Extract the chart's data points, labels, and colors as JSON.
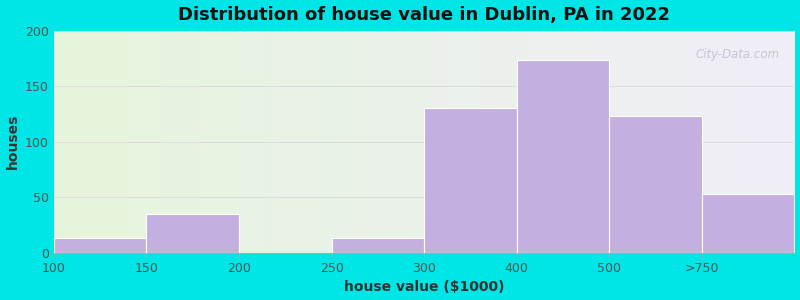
{
  "title": "Distribution of house value in Dublin, PA in 2022",
  "xlabel": "house value ($1000)",
  "ylabel": "houses",
  "tick_labels": [
    "100",
    "150",
    "200",
    "250",
    "300",
    "400",
    "500",
    ">750"
  ],
  "values": [
    13,
    35,
    0,
    13,
    130,
    174,
    123,
    53
  ],
  "bar_color": "#c4b0e0",
  "bar_edgecolor": "#ffffff",
  "background_color": "#00e5e5",
  "plot_bg_left": "#e6f5dc",
  "plot_bg_right": "#f0eef8",
  "ylim": [
    0,
    200
  ],
  "yticks": [
    0,
    50,
    100,
    150,
    200
  ],
  "grid_color": "#dddddd",
  "title_fontsize": 13,
  "label_fontsize": 10,
  "tick_fontsize": 9,
  "watermark_text": "City-Data.com",
  "watermark_color": "#c0bdd0"
}
